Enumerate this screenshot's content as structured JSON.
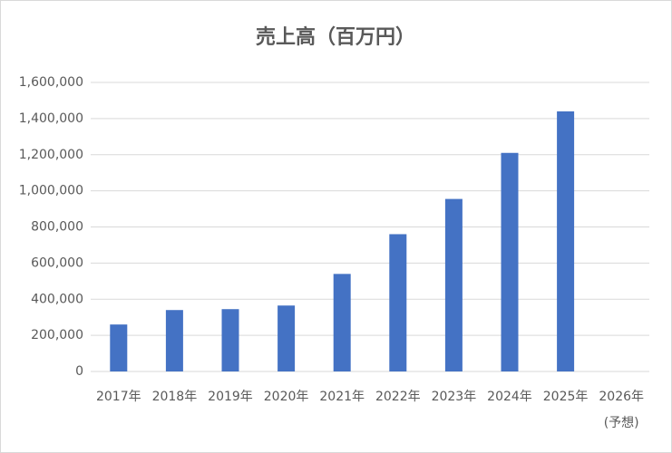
{
  "chart_data": {
    "type": "bar",
    "title": "売上高（百万円）",
    "categories": [
      "2017年",
      "2018年",
      "2019年",
      "2020年",
      "2021年",
      "2022年",
      "2023年",
      "2024年",
      "2025年",
      "2026年"
    ],
    "category_note": "(予想)",
    "values": [
      260000,
      340000,
      345000,
      365000,
      540000,
      760000,
      955000,
      1210000,
      1440000,
      null
    ],
    "color": "#4472c4",
    "ylim": [
      0,
      1600000
    ],
    "yticks": [
      0,
      {
        "value": 200000,
        "label": "200,000"
      },
      {
        "value": 400000,
        "label": "400,000"
      },
      {
        "value": 600000,
        "label": "600,000"
      },
      {
        "value": 800000,
        "label": "800,000"
      },
      {
        "value": 1000000,
        "label": "1,000,000"
      },
      {
        "value": 1200000,
        "label": "1,200,000"
      },
      {
        "value": 1400000,
        "label": "1,400,000"
      },
      {
        "value": 1600000,
        "label": "1,600,000"
      }
    ],
    "grid": true
  }
}
